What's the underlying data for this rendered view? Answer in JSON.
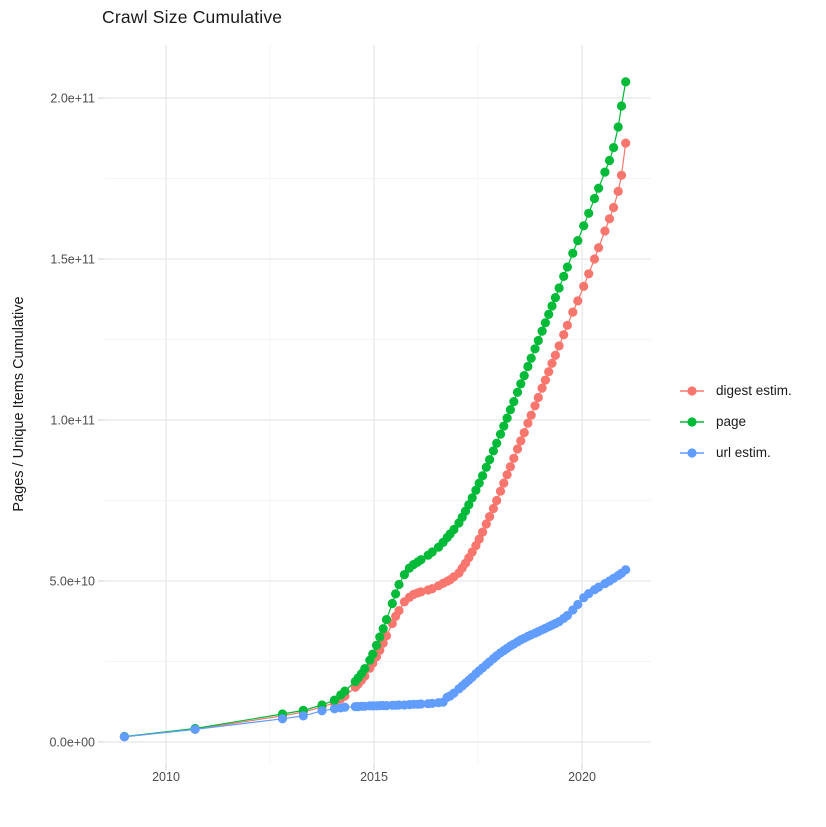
{
  "chart_data": {
    "type": "scatter",
    "title": "Crawl Size Cumulative",
    "xlabel": "",
    "ylabel": "Pages / Unique Items Cumulative",
    "x_unit": "year",
    "grid": true,
    "legend_position": "right",
    "x_domain": [
      2008.5,
      2021.7
    ],
    "y_domain": [
      -5000000000.0,
      216000000000.0
    ],
    "x_ticks": [
      {
        "value": 2010,
        "label": "2010"
      },
      {
        "value": 2015,
        "label": "2015"
      },
      {
        "value": 2020,
        "label": "2020"
      }
    ],
    "x_minor_ticks": [
      2012.5,
      2017.5
    ],
    "y_ticks": [
      {
        "value": 0,
        "label": "0.0e+00"
      },
      {
        "value": 50000000000.0,
        "label": "5.0e+10"
      },
      {
        "value": 100000000000.0,
        "label": "1.0e+11"
      },
      {
        "value": 150000000000.0,
        "label": "1.5e+11"
      },
      {
        "value": 200000000000.0,
        "label": "2.0e+11"
      }
    ],
    "y_minor_ticks": [
      25000000000.0,
      75000000000.0,
      125000000000.0,
      175000000000.0
    ],
    "series": [
      {
        "name": "digest estim.",
        "color": "#F8766D",
        "points": [
          [
            2009.0,
            1600000000.0
          ],
          [
            2010.7,
            4000000000.0
          ],
          [
            2012.8,
            8100000000.0
          ],
          [
            2013.3,
            9300000000.0
          ],
          [
            2013.75,
            10900000000.0
          ],
          [
            2014.05,
            12100000000.0
          ],
          [
            2014.2,
            13400000000.0
          ],
          [
            2014.3,
            14300000000.0
          ],
          [
            2014.55,
            17000000000.0
          ],
          [
            2014.62,
            18000000000.0
          ],
          [
            2014.7,
            19200000000.0
          ],
          [
            2014.78,
            20500000000.0
          ],
          [
            2014.9,
            22900000000.0
          ],
          [
            2014.97,
            24500000000.0
          ],
          [
            2015.06,
            26500000000.0
          ],
          [
            2015.14,
            28500000000.0
          ],
          [
            2015.22,
            30700000000.0
          ],
          [
            2015.3,
            33000000000.0
          ],
          [
            2015.44,
            36800000000.0
          ],
          [
            2015.52,
            39000000000.0
          ],
          [
            2015.6,
            40800000000.0
          ],
          [
            2015.73,
            43500000000.0
          ],
          [
            2015.85,
            44900000000.0
          ],
          [
            2015.95,
            45800000000.0
          ],
          [
            2016.05,
            46300000000.0
          ],
          [
            2016.13,
            46600000000.0
          ],
          [
            2016.3,
            47200000000.0
          ],
          [
            2016.4,
            47600000000.0
          ],
          [
            2016.55,
            48500000000.0
          ],
          [
            2016.66,
            49300000000.0
          ],
          [
            2016.76,
            49900000000.0
          ],
          [
            2016.83,
            50400000000.0
          ],
          [
            2016.92,
            51300000000.0
          ],
          [
            2017.04,
            52500000000.0
          ],
          [
            2017.12,
            54000000000.0
          ],
          [
            2017.2,
            55500000000.0
          ],
          [
            2017.28,
            57200000000.0
          ],
          [
            2017.36,
            59000000000.0
          ],
          [
            2017.45,
            61000000000.0
          ],
          [
            2017.53,
            63000000000.0
          ],
          [
            2017.61,
            65200000000.0
          ],
          [
            2017.7,
            67700000000.0
          ],
          [
            2017.78,
            70000000000.0
          ],
          [
            2017.87,
            72500000000.0
          ],
          [
            2017.95,
            75000000000.0
          ],
          [
            2018.04,
            77900000000.0
          ],
          [
            2018.12,
            80400000000.0
          ],
          [
            2018.2,
            83000000000.0
          ],
          [
            2018.28,
            85500000000.0
          ],
          [
            2018.36,
            88100000000.0
          ],
          [
            2018.45,
            91000000000.0
          ],
          [
            2018.53,
            93500000000.0
          ],
          [
            2018.61,
            96100000000.0
          ],
          [
            2018.7,
            99000000000.0
          ],
          [
            2018.78,
            101500000000.0
          ],
          [
            2018.87,
            104400000000.0
          ],
          [
            2018.95,
            107000000000.0
          ],
          [
            2019.04,
            109900000000.0
          ],
          [
            2019.12,
            112400000000.0
          ],
          [
            2019.2,
            115000000000.0
          ],
          [
            2019.28,
            117600000000.0
          ],
          [
            2019.36,
            120100000000.0
          ],
          [
            2019.45,
            123000000000.0
          ],
          [
            2019.56,
            126500000000.0
          ],
          [
            2019.65,
            129400000000.0
          ],
          [
            2019.78,
            133500000000.0
          ],
          [
            2019.9,
            137000000000.0
          ],
          [
            2020.04,
            141500000000.0
          ],
          [
            2020.16,
            145400000000.0
          ],
          [
            2020.3,
            150000000000.0
          ],
          [
            2020.4,
            153500000000.0
          ],
          [
            2020.55,
            158700000000.0
          ],
          [
            2020.66,
            162500000000.0
          ],
          [
            2020.76,
            166000000000.0
          ],
          [
            2020.87,
            171000000000.0
          ],
          [
            2020.95,
            176000000000.0
          ],
          [
            2021.05,
            186000000000.0
          ]
        ]
      },
      {
        "name": "page",
        "color": "#00BA38",
        "points": [
          [
            2009.0,
            1700000000.0
          ],
          [
            2010.7,
            4200000000.0
          ],
          [
            2012.8,
            8700000000.0
          ],
          [
            2013.3,
            9800000000.0
          ],
          [
            2013.75,
            11500000000.0
          ],
          [
            2014.05,
            13000000000.0
          ],
          [
            2014.2,
            14600000000.0
          ],
          [
            2014.3,
            15800000000.0
          ],
          [
            2014.55,
            18800000000.0
          ],
          [
            2014.62,
            19900000000.0
          ],
          [
            2014.7,
            21200000000.0
          ],
          [
            2014.78,
            22800000000.0
          ],
          [
            2014.9,
            25400000000.0
          ],
          [
            2014.97,
            27300000000.0
          ],
          [
            2015.06,
            30000000000.0
          ],
          [
            2015.14,
            32600000000.0
          ],
          [
            2015.22,
            35200000000.0
          ],
          [
            2015.3,
            38000000000.0
          ],
          [
            2015.44,
            43000000000.0
          ],
          [
            2015.52,
            46000000000.0
          ],
          [
            2015.6,
            48900000000.0
          ],
          [
            2015.73,
            52000000000.0
          ],
          [
            2015.85,
            54000000000.0
          ],
          [
            2015.95,
            55100000000.0
          ],
          [
            2016.05,
            55900000000.0
          ],
          [
            2016.13,
            56600000000.0
          ],
          [
            2016.3,
            58000000000.0
          ],
          [
            2016.4,
            59000000000.0
          ],
          [
            2016.55,
            60500000000.0
          ],
          [
            2016.66,
            62000000000.0
          ],
          [
            2016.76,
            63500000000.0
          ],
          [
            2016.83,
            64600000000.0
          ],
          [
            2016.92,
            66000000000.0
          ],
          [
            2017.04,
            68000000000.0
          ],
          [
            2017.12,
            69800000000.0
          ],
          [
            2017.2,
            71700000000.0
          ],
          [
            2017.28,
            73700000000.0
          ],
          [
            2017.36,
            75800000000.0
          ],
          [
            2017.45,
            78200000000.0
          ],
          [
            2017.53,
            80400000000.0
          ],
          [
            2017.61,
            82700000000.0
          ],
          [
            2017.7,
            85300000000.0
          ],
          [
            2017.78,
            87700000000.0
          ],
          [
            2017.87,
            90400000000.0
          ],
          [
            2017.95,
            92800000000.0
          ],
          [
            2018.04,
            95600000000.0
          ],
          [
            2018.12,
            98100000000.0
          ],
          [
            2018.2,
            100600000000.0
          ],
          [
            2018.28,
            103200000000.0
          ],
          [
            2018.36,
            105700000000.0
          ],
          [
            2018.45,
            108600000000.0
          ],
          [
            2018.53,
            111200000000.0
          ],
          [
            2018.61,
            113800000000.0
          ],
          [
            2018.7,
            116600000000.0
          ],
          [
            2018.78,
            119200000000.0
          ],
          [
            2018.87,
            122100000000.0
          ],
          [
            2018.95,
            124700000000.0
          ],
          [
            2019.04,
            127600000000.0
          ],
          [
            2019.12,
            130200000000.0
          ],
          [
            2019.2,
            132800000000.0
          ],
          [
            2019.28,
            135400000000.0
          ],
          [
            2019.36,
            138000000000.0
          ],
          [
            2019.45,
            141000000000.0
          ],
          [
            2019.56,
            144600000000.0
          ],
          [
            2019.65,
            147500000000.0
          ],
          [
            2019.78,
            151800000000.0
          ],
          [
            2019.9,
            155700000000.0
          ],
          [
            2020.04,
            160300000000.0
          ],
          [
            2020.16,
            164200000000.0
          ],
          [
            2020.3,
            168800000000.0
          ],
          [
            2020.4,
            172000000000.0
          ],
          [
            2020.55,
            177000000000.0
          ],
          [
            2020.66,
            180600000000.0
          ],
          [
            2020.76,
            184600000000.0
          ],
          [
            2020.87,
            191000000000.0
          ],
          [
            2020.95,
            197500000000.0
          ],
          [
            2021.05,
            205000000000.0
          ]
        ]
      },
      {
        "name": "url estim.",
        "color": "#619CFF",
        "points": [
          [
            2009.0,
            1600000000.0
          ],
          [
            2010.7,
            3900000000.0
          ],
          [
            2012.8,
            7200000000.0
          ],
          [
            2013.3,
            8100000000.0
          ],
          [
            2013.75,
            9700000000.0
          ],
          [
            2014.05,
            10300000000.0
          ],
          [
            2014.2,
            10600000000.0
          ],
          [
            2014.3,
            10800000000.0
          ],
          [
            2014.55,
            11000000000.0
          ],
          [
            2014.62,
            11000000000.0
          ],
          [
            2014.7,
            11100000000.0
          ],
          [
            2014.78,
            11100000000.0
          ],
          [
            2014.9,
            11200000000.0
          ],
          [
            2014.97,
            11200000000.0
          ],
          [
            2015.06,
            11200000000.0
          ],
          [
            2015.14,
            11300000000.0
          ],
          [
            2015.22,
            11300000000.0
          ],
          [
            2015.3,
            11300000000.0
          ],
          [
            2015.44,
            11400000000.0
          ],
          [
            2015.52,
            11400000000.0
          ],
          [
            2015.6,
            11500000000.0
          ],
          [
            2015.73,
            11500000000.0
          ],
          [
            2015.85,
            11600000000.0
          ],
          [
            2015.95,
            11700000000.0
          ],
          [
            2016.05,
            11700000000.0
          ],
          [
            2016.13,
            11800000000.0
          ],
          [
            2016.3,
            11900000000.0
          ],
          [
            2016.4,
            12000000000.0
          ],
          [
            2016.55,
            12200000000.0
          ],
          [
            2016.66,
            12400000000.0
          ],
          [
            2016.76,
            13900000000.0
          ],
          [
            2016.83,
            14300000000.0
          ],
          [
            2016.92,
            15200000000.0
          ],
          [
            2017.04,
            16500000000.0
          ],
          [
            2017.12,
            17400000000.0
          ],
          [
            2017.2,
            18300000000.0
          ],
          [
            2017.28,
            19200000000.0
          ],
          [
            2017.36,
            20100000000.0
          ],
          [
            2017.45,
            21200000000.0
          ],
          [
            2017.53,
            22100000000.0
          ],
          [
            2017.61,
            23000000000.0
          ],
          [
            2017.7,
            24000000000.0
          ],
          [
            2017.78,
            24900000000.0
          ],
          [
            2017.87,
            25900000000.0
          ],
          [
            2017.95,
            26800000000.0
          ],
          [
            2018.04,
            27700000000.0
          ],
          [
            2018.12,
            28400000000.0
          ],
          [
            2018.2,
            29100000000.0
          ],
          [
            2018.28,
            29800000000.0
          ],
          [
            2018.36,
            30400000000.0
          ],
          [
            2018.45,
            31100000000.0
          ],
          [
            2018.53,
            31700000000.0
          ],
          [
            2018.61,
            32200000000.0
          ],
          [
            2018.7,
            32800000000.0
          ],
          [
            2018.78,
            33300000000.0
          ],
          [
            2018.87,
            33800000000.0
          ],
          [
            2018.95,
            34300000000.0
          ],
          [
            2019.04,
            34800000000.0
          ],
          [
            2019.12,
            35300000000.0
          ],
          [
            2019.2,
            35800000000.0
          ],
          [
            2019.28,
            36300000000.0
          ],
          [
            2019.36,
            36800000000.0
          ],
          [
            2019.45,
            37400000000.0
          ],
          [
            2019.56,
            38400000000.0
          ],
          [
            2019.65,
            39300000000.0
          ],
          [
            2019.78,
            41000000000.0
          ],
          [
            2019.9,
            42700000000.0
          ],
          [
            2020.04,
            44800000000.0
          ],
          [
            2020.16,
            46100000000.0
          ],
          [
            2020.3,
            47300000000.0
          ],
          [
            2020.4,
            48100000000.0
          ],
          [
            2020.55,
            49200000000.0
          ],
          [
            2020.66,
            50000000000.0
          ],
          [
            2020.76,
            50800000000.0
          ],
          [
            2020.87,
            51700000000.0
          ],
          [
            2020.95,
            52400000000.0
          ],
          [
            2021.05,
            53500000000.0
          ]
        ]
      }
    ],
    "style": {
      "major_grid_color": "#EBEBEB",
      "minor_grid_color": "#F4F4F4",
      "tick_mark_color": "#D9D9D9",
      "tick_label_color": "#4D4D4D",
      "point_radius": 4.6
    }
  }
}
